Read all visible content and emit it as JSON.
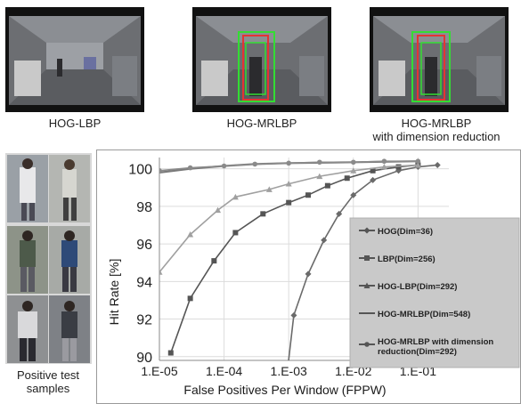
{
  "frames": [
    {
      "caption": "HOG-LBP"
    },
    {
      "caption": "HOG-MRLBP"
    },
    {
      "caption_line1": "HOG-MRLBP",
      "caption_line2": "with dimension reduction"
    }
  ],
  "samples": {
    "caption_line1": "Positive test",
    "caption_line2": "samples"
  },
  "chart_data": {
    "type": "line",
    "xlabel": "False Positives Per Window (FPPW)",
    "ylabel": "Hit Rate [%]",
    "x_scale": "log",
    "xlim": [
      1e-05,
      0.3
    ],
    "ylim": [
      89.8,
      100.6
    ],
    "x_ticks": [
      "1.E-05",
      "1.E-04",
      "1.E-03",
      "1.E-02",
      "1.E-01"
    ],
    "y_ticks": [
      "90",
      "92",
      "94",
      "96",
      "98",
      "100"
    ],
    "legend_position": "right",
    "series": [
      {
        "name": "HOG(Dim=36)",
        "color": "#6a6a6a",
        "marker": "diamond",
        "points": [
          [
            0.0009,
            88.5
          ],
          [
            0.0012,
            92.2
          ],
          [
            0.002,
            94.4
          ],
          [
            0.0035,
            96.2
          ],
          [
            0.006,
            97.6
          ],
          [
            0.01,
            98.6
          ],
          [
            0.02,
            99.4
          ],
          [
            0.05,
            99.9
          ],
          [
            0.1,
            100.1
          ],
          [
            0.2,
            100.2
          ]
        ]
      },
      {
        "name": "LBP(Dim=256)",
        "color": "#555555",
        "marker": "square",
        "points": [
          [
            1.5e-05,
            90.2
          ],
          [
            3e-05,
            93.1
          ],
          [
            7e-05,
            95.1
          ],
          [
            0.00015,
            96.6
          ],
          [
            0.0004,
            97.6
          ],
          [
            0.001,
            98.2
          ],
          [
            0.002,
            98.6
          ],
          [
            0.004,
            99.1
          ],
          [
            0.008,
            99.5
          ],
          [
            0.02,
            99.9
          ],
          [
            0.05,
            100.1
          ],
          [
            0.1,
            100.2
          ]
        ]
      },
      {
        "name": "HOG-LBP(Dim=292)",
        "color": "#a0a0a0",
        "marker": "triangle",
        "points": [
          [
            1e-05,
            94.5
          ],
          [
            3e-05,
            96.5
          ],
          [
            8e-05,
            97.8
          ],
          [
            0.00015,
            98.5
          ],
          [
            0.0005,
            98.9
          ],
          [
            0.001,
            99.2
          ],
          [
            0.003,
            99.6
          ],
          [
            0.01,
            99.9
          ],
          [
            0.03,
            100.1
          ],
          [
            0.1,
            100.2
          ]
        ]
      },
      {
        "name": "HOG-MRLBP(Dim=548)",
        "color": "#7a7a7a",
        "marker": "none",
        "points": [
          [
            1e-05,
            99.8
          ],
          [
            3e-05,
            100.0
          ],
          [
            0.0001,
            100.15
          ],
          [
            0.0003,
            100.25
          ],
          [
            0.001,
            100.3
          ],
          [
            0.01,
            100.35
          ],
          [
            0.1,
            100.4
          ]
        ]
      },
      {
        "name": "HOG-MRLBP with dimension reduction(Dim=292)",
        "color": "#8a8a8a",
        "marker": "circle",
        "points": [
          [
            1e-05,
            99.9
          ],
          [
            3e-05,
            100.05
          ],
          [
            0.0001,
            100.15
          ],
          [
            0.0003,
            100.25
          ],
          [
            0.001,
            100.3
          ],
          [
            0.003,
            100.35
          ],
          [
            0.01,
            100.35
          ],
          [
            0.03,
            100.4
          ],
          [
            0.1,
            100.4
          ]
        ]
      }
    ],
    "legend_lines": [
      [
        "HOG(Dim=36)"
      ],
      [
        "LBP(Dim=256)"
      ],
      [
        "HOG-LBP(Dim=292)"
      ],
      [
        "HOG-MRLBP(Dim=548)"
      ],
      [
        "HOG-MRLBP with dimension",
        "reduction(Dim=292)"
      ]
    ]
  }
}
